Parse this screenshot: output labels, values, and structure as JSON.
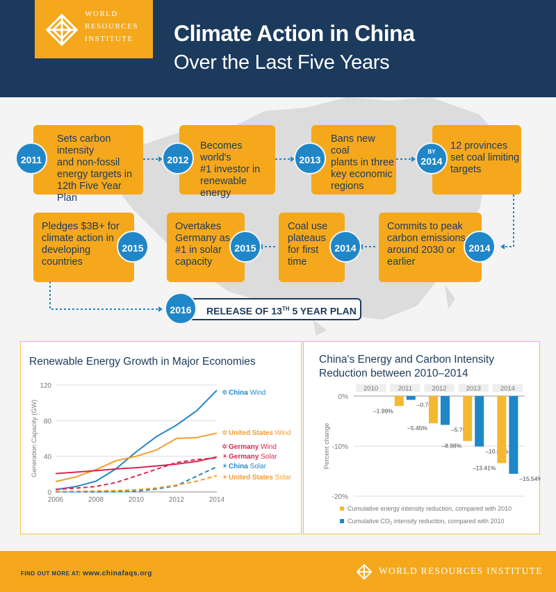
{
  "header": {
    "logo_line1": "WORLD",
    "logo_line2": "RESOURCES",
    "logo_line3": "INSTITUTE",
    "title": "Climate Action in China",
    "subtitle": "Over the Last Five Years"
  },
  "timeline": [
    {
      "year": "2011",
      "lines": [
        "Sets carbon intensity",
        "and non-fossil",
        "energy targets in",
        "12th Five Year Plan"
      ]
    },
    {
      "year": "2012",
      "lines": [
        "Becomes world's",
        "#1 investor in",
        "renewable energy"
      ]
    },
    {
      "year": "2013",
      "lines": [
        "Bans new coal",
        "plants in three",
        "key economic",
        "regions"
      ]
    },
    {
      "year_prefix": "BY",
      "year": "2014",
      "lines": [
        "12 provinces",
        "set coal limiting",
        "targets"
      ]
    },
    {
      "year": "2014",
      "lines": [
        "Commits to peak",
        "carbon emissions",
        "around 2030 or",
        "earlier"
      ]
    },
    {
      "year": "2014",
      "lines": [
        "Coal use",
        "plateaus",
        "for first",
        "time"
      ]
    },
    {
      "year": "2015",
      "lines": [
        "Overtakes",
        "Germany as",
        "#1 in solar",
        "capacity"
      ]
    },
    {
      "year": "2015",
      "lines": [
        "Pledges $3B+ for",
        "climate action in",
        "developing",
        "countries"
      ]
    }
  ],
  "release": {
    "year": "2016",
    "text_before": "RELEASE OF 13",
    "superscript": "TH",
    "text_after": " 5 YEAR PLAN"
  },
  "chart_data": [
    {
      "type": "line",
      "title": "Renewable Energy Growth in Major Economies",
      "ylabel": "Generation Capacity (GW)",
      "xlabel": "",
      "x": [
        2006,
        2007,
        2008,
        2009,
        2010,
        2011,
        2012,
        2013,
        2014
      ],
      "xticks": [
        "2006",
        "2008",
        "2010",
        "2012",
        "2014"
      ],
      "yticks": [
        "0",
        "40",
        "80",
        "120"
      ],
      "ylim": [
        0,
        120
      ],
      "xlim": [
        2006,
        2014
      ],
      "series": [
        {
          "name": "China Wind",
          "country": "China",
          "kind": "Wind",
          "color": "#1f86c8",
          "dashed": false,
          "values": [
            2.6,
            6,
            12,
            26,
            45,
            62,
            75,
            91,
            114
          ]
        },
        {
          "name": "United States Wind",
          "country": "United States",
          "kind": "Wind",
          "color": "#f39c2b",
          "dashed": false,
          "values": [
            11.6,
            16.8,
            25,
            35,
            40,
            47,
            60,
            61,
            66
          ]
        },
        {
          "name": "Germany Wind",
          "country": "Germany",
          "kind": "Wind",
          "color": "#d9264e",
          "dashed": false,
          "values": [
            20.6,
            22.2,
            23.9,
            25.8,
            27.2,
            29.1,
            31.3,
            34.2,
            39.2
          ]
        },
        {
          "name": "Germany Solar",
          "country": "Germany",
          "kind": "Solar",
          "color": "#d9264e",
          "dashed": true,
          "values": [
            2.9,
            4.2,
            6.1,
            10.6,
            17.9,
            25.4,
            33,
            36.3,
            38.2
          ]
        },
        {
          "name": "China Solar",
          "country": "China",
          "kind": "Solar",
          "color": "#1f86c8",
          "dashed": true,
          "values": [
            0.1,
            0.1,
            0.1,
            0.3,
            0.8,
            3.3,
            7,
            17.7,
            28.2
          ]
        },
        {
          "name": "United States Solar",
          "country": "United States",
          "kind": "Solar",
          "color": "#f39c2b",
          "dashed": true,
          "values": [
            0.6,
            0.8,
            1.2,
            1.6,
            2.5,
            4.4,
            7.7,
            12.1,
            18.3
          ]
        }
      ]
    },
    {
      "type": "bar",
      "title_line1": "China's Energy and Carbon Intensity",
      "title_line2": "Reduction between 2010–2014",
      "ylabel": "Percent change",
      "categories": [
        "2010",
        "2011",
        "2012",
        "2013",
        "2014"
      ],
      "yticks": [
        "0%",
        "-10%",
        "-20%"
      ],
      "ylim": [
        -20,
        0
      ],
      "series": [
        {
          "name": "Cumulative energy intensity reduction, compared with 2010",
          "color": "#f5b82e",
          "values": [
            0,
            -1.99,
            -5.45,
            -8.98,
            -13.41
          ],
          "labels": [
            "",
            "–1.99%",
            "–5.45%",
            "–8.98%",
            "–13.41%"
          ]
        },
        {
          "name": "Cumulative CO2 intensity reduction, compared with 2010",
          "color": "#1f86c8",
          "values": [
            0,
            -0.76,
            -5.76,
            -10.09,
            -15.54
          ],
          "labels": [
            "",
            "–0.76%",
            "–5.76%",
            "–10.09%",
            "–15.54%"
          ]
        }
      ],
      "legend": {
        "energy": "Cumulative energy intensity reduction, compared with 2010",
        "co2_before": "Cumulative CO",
        "co2_sub": "2",
        "co2_after": " intensity reduction, compared with 2010"
      }
    }
  ],
  "footer": {
    "find_label": "FIND OUT MORE AT: ",
    "url": "www.chinafaqs.org",
    "logo_text": "WORLD RESOURCES INSTITUTE"
  }
}
